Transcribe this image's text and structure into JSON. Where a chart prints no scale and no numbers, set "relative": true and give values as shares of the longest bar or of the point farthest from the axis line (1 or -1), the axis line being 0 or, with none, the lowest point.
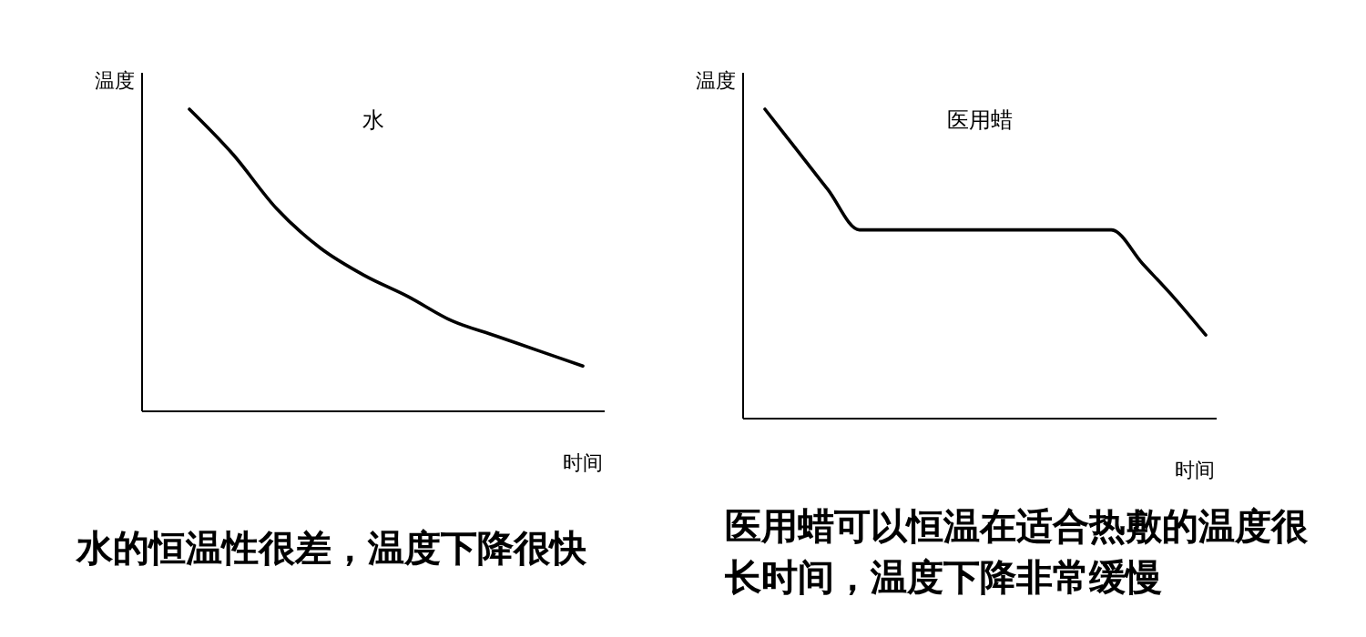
{
  "chart_data": [
    {
      "type": "line",
      "title": "水",
      "xlabel": "时间",
      "ylabel": "温度",
      "relative": true,
      "categories": [
        null,
        null,
        null,
        null,
        null,
        null,
        null,
        null,
        null,
        null
      ],
      "series": [
        {
          "color": "#000000",
          "values": [
            1,
            0.85,
            0.67,
            0.54,
            0.45,
            0.38,
            0.3,
            0.25,
            0.2,
            0.15
          ]
        }
      ],
      "annotations": [
        "水的恒温性很差，温度下降很快"
      ]
    },
    {
      "type": "line",
      "title": "医用蜡",
      "xlabel": "时间",
      "ylabel": "温度",
      "relative": true,
      "categories": [
        null,
        null,
        null,
        null,
        null,
        null,
        null,
        null,
        null,
        null,
        null,
        null,
        null,
        null,
        null
      ],
      "series": [
        {
          "color": "#000000",
          "values": [
            1,
            0.87,
            0.74,
            0.61,
            0.61,
            0.61,
            0.61,
            0.61,
            0.61,
            0.61,
            0.61,
            0.61,
            0.5,
            0.39,
            0.27
          ]
        }
      ],
      "annotations": [
        "医用蜡可以恒温在适合热敷的温度很长时间，温度下降非常缓慢"
      ]
    }
  ]
}
